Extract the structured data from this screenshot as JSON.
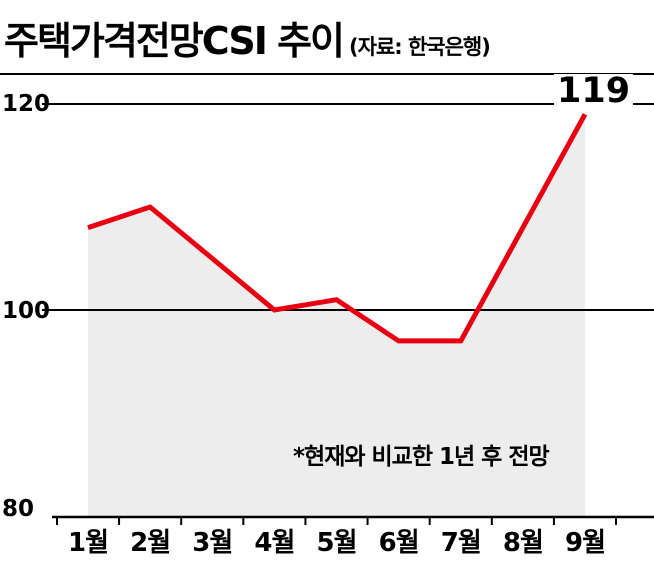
{
  "chart_data": {
    "type": "line",
    "title": "주택가격전망CSI 추이",
    "source": "(자료: 한국은행)",
    "categories": [
      "1월",
      "2월",
      "3월",
      "4월",
      "5월",
      "6월",
      "7월",
      "8월",
      "9월"
    ],
    "values": [
      108,
      110,
      105,
      100,
      101,
      97,
      97,
      108,
      119
    ],
    "ylim": [
      80,
      120
    ],
    "ytick_labels": [
      "120",
      "100",
      "80"
    ],
    "yticks": [
      120,
      100,
      80
    ],
    "last_value_label": "119",
    "annotation": "*현재와 비교한 1년 후 전망",
    "line_color": "#e60012",
    "area_color": "#ededed",
    "grid": "horizontal",
    "legend": "none"
  }
}
